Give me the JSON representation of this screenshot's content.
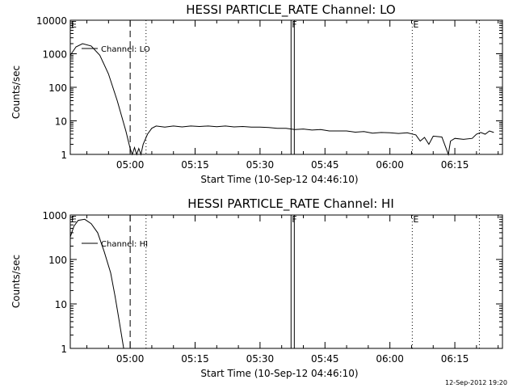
{
  "footer": {
    "timestamp": "12-Sep-2012 19:20"
  },
  "chart_data": [
    {
      "type": "line",
      "title": "HESSI PARTICLE_RATE Channel: LO",
      "xlabel": "Start Time (10-Sep-12 04:46:10)",
      "ylabel": "Counts/sec",
      "y_scale": "log",
      "xlim": [
        "04:46:10",
        "06:26:00"
      ],
      "ylim": [
        1,
        10000
      ],
      "x_ticks": [
        "05:00",
        "05:15",
        "05:30",
        "05:45",
        "06:00",
        "06:15"
      ],
      "y_ticks": [
        "1",
        "10",
        "100",
        "1000",
        "10000"
      ],
      "legend": {
        "position": "top-left"
      },
      "markers": [
        {
          "label": "E",
          "time": "04:46:10",
          "style": "solid"
        },
        {
          "label": "",
          "time": "05:00:00",
          "style": "dashed"
        },
        {
          "label": "",
          "time": "05:03:40",
          "style": "dotted"
        },
        {
          "label": "F",
          "time": "05:37:10",
          "style": "solid"
        },
        {
          "label": "",
          "time": "05:37:55",
          "style": "solid"
        },
        {
          "label": "E",
          "time": "06:05:10",
          "style": "dotted"
        },
        {
          "label": "",
          "time": "06:20:40",
          "style": "dotted"
        }
      ],
      "series": [
        {
          "name": "Channel: LO",
          "points": [
            [
              "04:46:10",
              900
            ],
            [
              "04:47:30",
              1600
            ],
            [
              "04:49:00",
              2000
            ],
            [
              "04:51:00",
              1700
            ],
            [
              "04:53:00",
              900
            ],
            [
              "04:55:00",
              250
            ],
            [
              "04:57:00",
              40
            ],
            [
              "04:59:00",
              5
            ],
            [
              "05:00:00",
              1.5
            ],
            [
              "05:00:30",
              1
            ],
            [
              "05:01:00",
              1.6
            ],
            [
              "05:01:30",
              1
            ],
            [
              "05:02:00",
              1.5
            ],
            [
              "05:02:30",
              1
            ],
            [
              "05:03:00",
              2
            ],
            [
              "05:04:00",
              4
            ],
            [
              "05:05:00",
              6
            ],
            [
              "05:06:00",
              7
            ],
            [
              "05:08:00",
              6.5
            ],
            [
              "05:10:00",
              7
            ],
            [
              "05:12:00",
              6.6
            ],
            [
              "05:14:00",
              7
            ],
            [
              "05:16:00",
              6.8
            ],
            [
              "05:18:00",
              7
            ],
            [
              "05:20:00",
              6.7
            ],
            [
              "05:22:00",
              7
            ],
            [
              "05:24:00",
              6.6
            ],
            [
              "05:26:00",
              6.8
            ],
            [
              "05:28:00",
              6.5
            ],
            [
              "05:30:00",
              6.5
            ],
            [
              "05:32:00",
              6.3
            ],
            [
              "05:34:00",
              6
            ],
            [
              "05:36:00",
              6
            ],
            [
              "05:38:00",
              5.5
            ],
            [
              "05:40:00",
              5.7
            ],
            [
              "05:42:00",
              5.3
            ],
            [
              "05:44:00",
              5.5
            ],
            [
              "05:46:00",
              5
            ],
            [
              "05:48:00",
              5
            ],
            [
              "05:50:00",
              5
            ],
            [
              "05:52:00",
              4.6
            ],
            [
              "05:54:00",
              4.8
            ],
            [
              "05:56:00",
              4.3
            ],
            [
              "05:58:00",
              4.5
            ],
            [
              "06:00:00",
              4.4
            ],
            [
              "06:02:00",
              4.2
            ],
            [
              "06:04:00",
              4.4
            ],
            [
              "06:06:00",
              3.8
            ],
            [
              "06:07:00",
              2.5
            ],
            [
              "06:08:00",
              3.2
            ],
            [
              "06:09:00",
              2
            ],
            [
              "06:10:00",
              3.5
            ],
            [
              "06:12:00",
              3.3
            ],
            [
              "06:13:00",
              1.5
            ],
            [
              "06:13:30",
              1
            ],
            [
              "06:14:00",
              2.5
            ],
            [
              "06:15:00",
              3
            ],
            [
              "06:17:00",
              2.8
            ],
            [
              "06:19:00",
              3
            ],
            [
              "06:20:00",
              4
            ],
            [
              "06:21:00",
              4.5
            ],
            [
              "06:22:00",
              4
            ],
            [
              "06:23:00",
              5
            ],
            [
              "06:24:00",
              4.5
            ]
          ]
        }
      ]
    },
    {
      "type": "line",
      "title": "HESSI PARTICLE_RATE Channel: HI",
      "xlabel": "Start Time (10-Sep-12 04:46:10)",
      "ylabel": "Counts/sec",
      "y_scale": "log",
      "xlim": [
        "04:46:10",
        "06:26:00"
      ],
      "ylim": [
        1,
        1000
      ],
      "x_ticks": [
        "05:00",
        "05:15",
        "05:30",
        "05:45",
        "06:00",
        "06:15"
      ],
      "y_ticks": [
        "1",
        "10",
        "100",
        "1000"
      ],
      "legend": {
        "position": "top-left"
      },
      "markers": [
        {
          "label": "E",
          "time": "04:46:10",
          "style": "solid"
        },
        {
          "label": "",
          "time": "05:00:00",
          "style": "dashed"
        },
        {
          "label": "",
          "time": "05:03:40",
          "style": "dotted"
        },
        {
          "label": "F",
          "time": "05:37:10",
          "style": "solid"
        },
        {
          "label": "",
          "time": "05:37:55",
          "style": "solid"
        },
        {
          "label": "E",
          "time": "06:05:10",
          "style": "dotted"
        },
        {
          "label": "",
          "time": "06:20:40",
          "style": "dotted"
        }
      ],
      "series": [
        {
          "name": "Channel: HI",
          "points": [
            [
              "04:46:10",
              320
            ],
            [
              "04:47:00",
              560
            ],
            [
              "04:48:00",
              760
            ],
            [
              "04:49:30",
              800
            ],
            [
              "04:51:00",
              640
            ],
            [
              "04:52:30",
              400
            ],
            [
              "04:54:00",
              150
            ],
            [
              "04:55:30",
              50
            ],
            [
              "04:56:30",
              15
            ],
            [
              "04:57:30",
              4
            ],
            [
              "04:58:30",
              1
            ]
          ]
        }
      ]
    }
  ]
}
